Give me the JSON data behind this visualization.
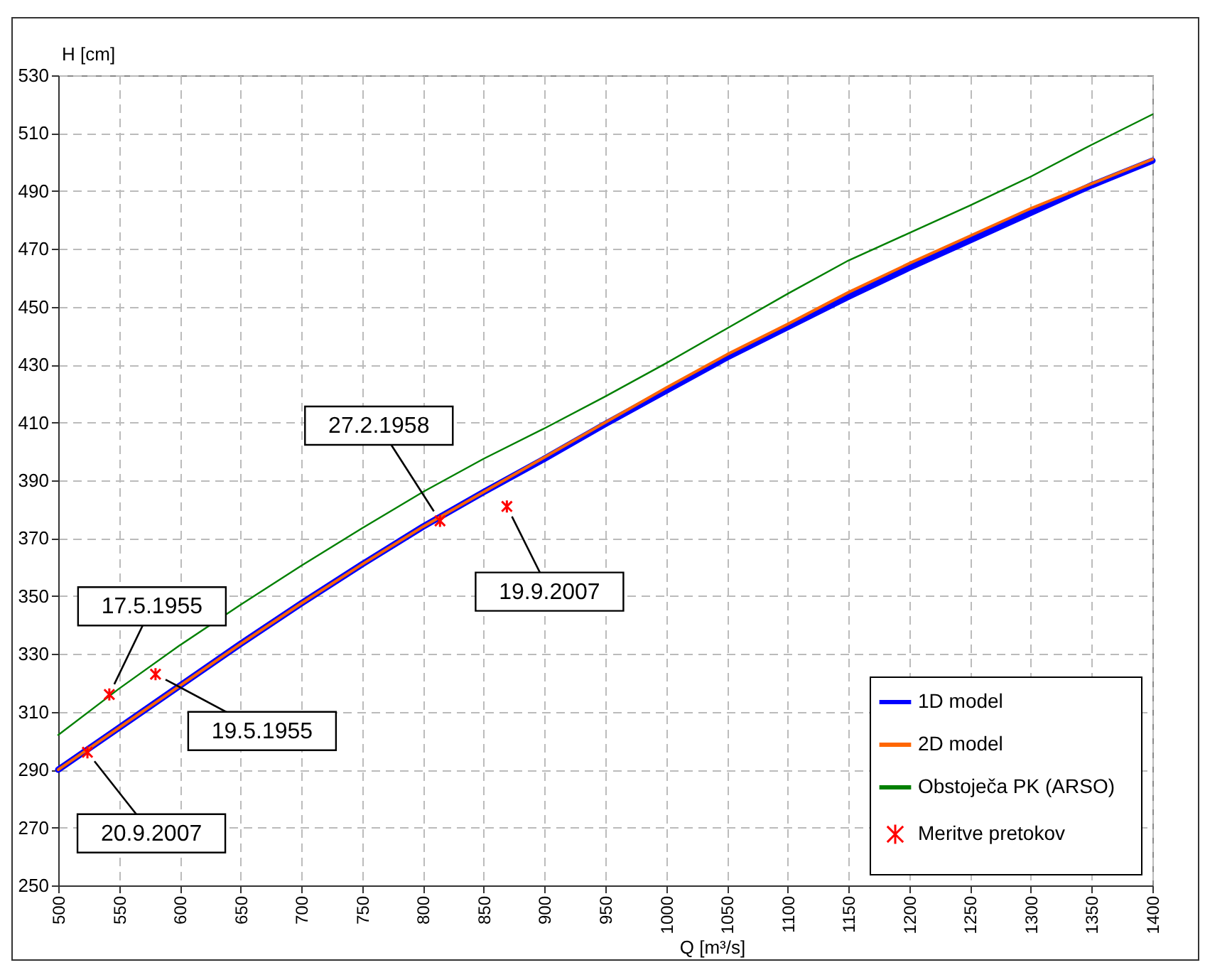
{
  "chart_data": {
    "type": "line",
    "xlabel": "Q [m³/s]",
    "ylabel": "H [cm]",
    "xlim": [
      500,
      1400
    ],
    "ylim": [
      250,
      530
    ],
    "xticks": [
      500,
      550,
      600,
      650,
      700,
      750,
      800,
      850,
      900,
      950,
      1000,
      1050,
      1100,
      1150,
      1200,
      1250,
      1300,
      1350,
      1400
    ],
    "yticks": [
      250,
      270,
      290,
      310,
      330,
      350,
      370,
      390,
      410,
      430,
      450,
      470,
      490,
      510,
      530
    ],
    "grid": true,
    "legend": "bottom right",
    "series": [
      {
        "name": "1D model",
        "color": "#0000ff",
        "x": [
          500,
          550,
          600,
          650,
          700,
          750,
          800,
          850,
          900,
          950,
          1000,
          1050,
          1100,
          1150,
          1200,
          1250,
          1300,
          1350,
          1400
        ],
        "values": [
          290,
          304.5,
          319,
          333.5,
          347.5,
          361,
          374,
          386,
          397.5,
          409.5,
          421,
          432.5,
          443,
          453.5,
          463.5,
          473,
          482.5,
          492,
          500.5
        ]
      },
      {
        "name": "2D model",
        "color": "#ff6600",
        "x": [
          500,
          550,
          600,
          650,
          700,
          750,
          800,
          850,
          900,
          950,
          1000,
          1050,
          1100,
          1150,
          1200,
          1250,
          1300,
          1350,
          1400
        ],
        "values": [
          290,
          304.5,
          319,
          333.5,
          347.5,
          361,
          374,
          386,
          398,
          410,
          422,
          433.5,
          444,
          455,
          465,
          474.5,
          484,
          492.5,
          501
        ]
      },
      {
        "name": "Obstoječa PK (ARSO)",
        "color": "#008000",
        "x": [
          500,
          550,
          600,
          650,
          700,
          750,
          800,
          850,
          900,
          950,
          1000,
          1050,
          1100,
          1150,
          1200,
          1250,
          1300,
          1350,
          1400
        ],
        "values": [
          302,
          318,
          333,
          347,
          360.5,
          373.5,
          386,
          397.5,
          408,
          419,
          430.5,
          442.5,
          454.5,
          466,
          475.5,
          485,
          495,
          506,
          516.5
        ]
      },
      {
        "name": "Meritve pretokov",
        "type": "scatter",
        "marker": "cross",
        "color": "#ff0000",
        "x": [
          524,
          542,
          580,
          814,
          869
        ],
        "values": [
          296,
          316,
          323,
          376,
          381
        ]
      }
    ],
    "annotations": [
      {
        "text": "27.2.1958",
        "x": 814,
        "y": 376
      },
      {
        "text": "19.9.2007",
        "x": 869,
        "y": 381
      },
      {
        "text": "17.5.1955",
        "x": 542,
        "y": 316
      },
      {
        "text": "19.5.1955",
        "x": 580,
        "y": 323
      },
      {
        "text": "20.9.2007",
        "x": 524,
        "y": 296
      }
    ]
  }
}
